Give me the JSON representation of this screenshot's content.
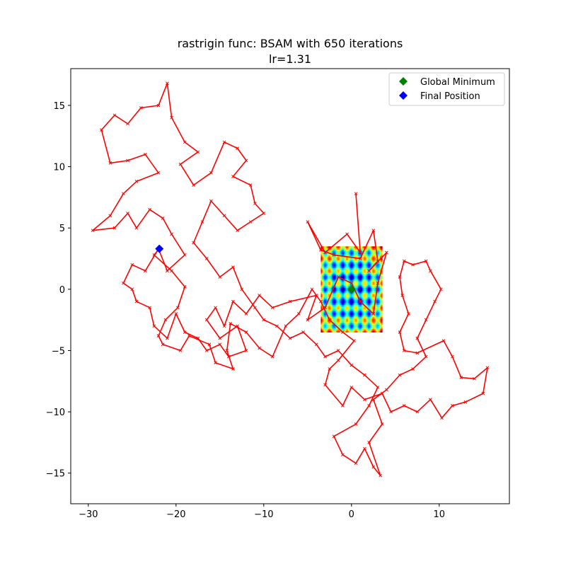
{
  "chart_data": {
    "type": "line",
    "title": "rastrigin func: BSAM with 650 iterations",
    "subtitle": "lr=1.31",
    "xlim": [
      -32,
      18
    ],
    "ylim": [
      -17.5,
      18
    ],
    "xticks": [
      -30,
      -20,
      -10,
      0,
      10
    ],
    "yticks": [
      -15,
      -10,
      -5,
      0,
      5,
      10,
      15
    ],
    "xtick_labels": [
      "−30",
      "−20",
      "−10",
      "0",
      "10"
    ],
    "ytick_labels": [
      "−15",
      "−10",
      "−5",
      "0",
      "5",
      "10",
      "15"
    ],
    "grid": false,
    "legend": {
      "placement": "top-right",
      "entries": [
        {
          "label": "Global Minimum",
          "color": "#008000",
          "marker": "diamond"
        },
        {
          "label": "Final Position",
          "color": "#0000ff",
          "marker": "diamond"
        }
      ]
    },
    "heatmap": {
      "function": "rastrigin",
      "x_range": [
        -3.5,
        3.5
      ],
      "y_range": [
        -3.5,
        3.5
      ],
      "colormap": "jet"
    },
    "global_minimum": {
      "x": 0,
      "y": 0
    },
    "final_position": {
      "x": -21.9,
      "y": 3.3
    },
    "trajectory_color": "#ff0000",
    "series": [
      {
        "name": "BSAM trajectory",
        "points": [
          [
            0.5,
            7.8
          ],
          [
            1,
            3
          ],
          [
            -0.5,
            4.5
          ],
          [
            -3,
            3
          ],
          [
            -5,
            5.5
          ],
          [
            -3.5,
            3.2
          ],
          [
            -2,
            2.8
          ],
          [
            1,
            2.5
          ],
          [
            2.5,
            4.8
          ],
          [
            3,
            2.3
          ],
          [
            2,
            1.5
          ],
          [
            4,
            3
          ],
          [
            3,
            0.5
          ],
          [
            2.5,
            -2
          ],
          [
            1,
            -1
          ],
          [
            0,
            0.5
          ],
          [
            -1.5,
            1
          ],
          [
            -3,
            -1.5
          ],
          [
            -5,
            -2.5
          ],
          [
            -4,
            -0.5
          ],
          [
            -7,
            -1
          ],
          [
            -9,
            -1.5
          ],
          [
            -10.5,
            -0.5
          ],
          [
            -12,
            -2
          ],
          [
            -13.5,
            -1
          ],
          [
            -14.5,
            -3
          ],
          [
            -15.5,
            -1.5
          ],
          [
            -16.5,
            -2.5
          ],
          [
            -15,
            -4
          ],
          [
            -13,
            -3
          ],
          [
            -12,
            -5
          ],
          [
            -14,
            -5.5
          ],
          [
            -15,
            -4.5
          ],
          [
            -16.5,
            -5
          ],
          [
            -17.5,
            -4
          ],
          [
            -19,
            -3.5
          ],
          [
            -20,
            -2
          ],
          [
            -21,
            -4
          ],
          [
            -22.5,
            -3
          ],
          [
            -23,
            -1.5
          ],
          [
            -24.5,
            -1
          ],
          [
            -25,
            0
          ],
          [
            -26,
            0.5
          ],
          [
            -25,
            2
          ],
          [
            -23.5,
            1.5
          ],
          [
            -22,
            3.3
          ],
          [
            -21,
            1.5
          ],
          [
            -19,
            2.8
          ],
          [
            -20.5,
            4.5
          ],
          [
            -21.5,
            5.8
          ],
          [
            -23,
            6.5
          ],
          [
            -24.5,
            5
          ],
          [
            -25.5,
            6.2
          ],
          [
            -27,
            5
          ],
          [
            -29.5,
            4.8
          ],
          [
            -27.5,
            6
          ],
          [
            -26,
            7.8
          ],
          [
            -24.5,
            8.8
          ],
          [
            -22,
            9.5
          ],
          [
            -23.5,
            11
          ],
          [
            -25.5,
            10.5
          ],
          [
            -27.5,
            10.3
          ],
          [
            -28.5,
            13
          ],
          [
            -27,
            14.2
          ],
          [
            -25.5,
            13.5
          ],
          [
            -24,
            14.8
          ],
          [
            -22,
            15
          ],
          [
            -21,
            16.8
          ],
          [
            -20.5,
            14
          ],
          [
            -19,
            12
          ],
          [
            -17.5,
            11.2
          ],
          [
            -19.5,
            10.2
          ],
          [
            -18,
            8.5
          ],
          [
            -16,
            9.5
          ],
          [
            -14.5,
            12
          ],
          [
            -13,
            11.5
          ],
          [
            -12,
            10.5
          ],
          [
            -13.5,
            9.2
          ],
          [
            -11.5,
            8.5
          ],
          [
            -11,
            7
          ],
          [
            -10,
            6.2
          ],
          [
            -11.5,
            5.5
          ],
          [
            -13,
            4.8
          ],
          [
            -14.5,
            6
          ],
          [
            -16,
            7.2
          ],
          [
            -17,
            5.5
          ],
          [
            -18,
            3.8
          ],
          [
            -16.5,
            2.5
          ],
          [
            -15,
            1
          ],
          [
            -13.5,
            1.8
          ],
          [
            -12.5,
            0
          ],
          [
            -11,
            -1.5
          ],
          [
            -10,
            -2.5
          ],
          [
            -8.5,
            -3
          ],
          [
            -7,
            -4
          ],
          [
            -5.5,
            -3.5
          ],
          [
            -4,
            -4.5
          ],
          [
            -3,
            -5.5
          ],
          [
            -1.5,
            -5
          ],
          [
            0,
            -6.2
          ],
          [
            1.5,
            -7
          ],
          [
            3,
            -8
          ],
          [
            2,
            -9.5
          ],
          [
            0.5,
            -11
          ],
          [
            -2,
            -12
          ],
          [
            -1,
            -13.5
          ],
          [
            0.5,
            -14.2
          ],
          [
            1.5,
            -13
          ],
          [
            2.5,
            -14.5
          ],
          [
            3.3,
            -15.2
          ],
          [
            2,
            -12.5
          ],
          [
            3.5,
            -11
          ],
          [
            2.5,
            -9
          ],
          [
            4,
            -8.2
          ],
          [
            5.5,
            -7
          ],
          [
            7,
            -6.5
          ],
          [
            8.5,
            -5.5
          ],
          [
            7.5,
            -4
          ],
          [
            8.5,
            -2.5
          ],
          [
            9.5,
            -1
          ],
          [
            10.2,
            0
          ],
          [
            9,
            1.5
          ],
          [
            8.5,
            2.3
          ],
          [
            7,
            2
          ],
          [
            6,
            2.3
          ],
          [
            5.5,
            1
          ],
          [
            5.8,
            -0.5
          ],
          [
            6.5,
            -2
          ],
          [
            5.5,
            -3.5
          ],
          [
            6,
            -5
          ],
          [
            7.5,
            -5.2
          ],
          [
            10.5,
            -4.2
          ],
          [
            11.5,
            -5.5
          ],
          [
            12.5,
            -7.2
          ],
          [
            14,
            -7.3
          ],
          [
            15.5,
            -6.4
          ],
          [
            15,
            -8.5
          ],
          [
            13,
            -9.2
          ],
          [
            11.5,
            -9.5
          ],
          [
            10.3,
            -10.5
          ],
          [
            9,
            -9
          ],
          [
            7.5,
            -10
          ],
          [
            6,
            -9.5
          ],
          [
            4.5,
            -10
          ],
          [
            3.5,
            -8.5
          ],
          [
            1.5,
            -9
          ],
          [
            0,
            -8
          ],
          [
            -1,
            -9.5
          ],
          [
            -3,
            -7.8
          ],
          [
            -2.5,
            -6.5
          ],
          [
            -1.5,
            -5.8
          ],
          [
            0.3,
            -4.2
          ],
          [
            -1,
            -3.5
          ],
          [
            -2.5,
            -2.5
          ],
          [
            -3.5,
            -1
          ],
          [
            -4.5,
            0
          ],
          [
            -6,
            -2
          ],
          [
            -7.5,
            -3
          ],
          [
            -9,
            -5.5
          ],
          [
            -10.5,
            -4.8
          ],
          [
            -12,
            -3.5
          ],
          [
            -13.8,
            -2.8
          ],
          [
            -14.2,
            -5
          ],
          [
            -13.5,
            -6.5
          ],
          [
            -15.5,
            -6
          ],
          [
            -16.2,
            -4.5
          ],
          [
            -18.5,
            -3.8
          ],
          [
            -19.5,
            -5
          ],
          [
            -21.5,
            -4.5
          ],
          [
            -22,
            -3.8
          ],
          [
            -21.2,
            -2.5
          ],
          [
            -19.8,
            -1.5
          ],
          [
            -19,
            0.2
          ],
          [
            -20.5,
            1.5
          ],
          [
            -22.5,
            2.8
          ],
          [
            -21.9,
            3.3
          ]
        ]
      }
    ]
  }
}
